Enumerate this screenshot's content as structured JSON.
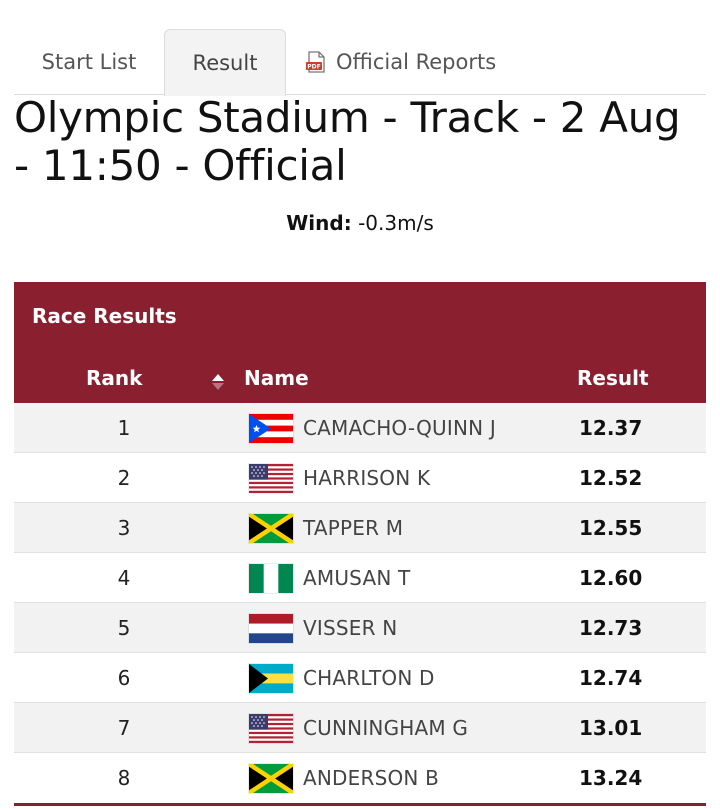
{
  "tabs": [
    {
      "label": "Start List"
    },
    {
      "label": "Result"
    },
    {
      "label": "Official Reports",
      "icon": "pdf-icon"
    }
  ],
  "title": "Olympic Stadium - Track - 2 Aug - 11:50 - Official",
  "wind": {
    "label": "Wind:",
    "value": "-0.3m/s"
  },
  "panel": {
    "title": "Race Results",
    "columns": {
      "rank": "Rank",
      "name": "Name",
      "result": "Result"
    }
  },
  "rows": [
    {
      "rank": "1",
      "flag": "Puerto Rico",
      "name": "CAMACHO-QUINN J",
      "result": "12.37"
    },
    {
      "rank": "2",
      "flag": "United States",
      "name": "HARRISON K",
      "result": "12.52"
    },
    {
      "rank": "3",
      "flag": "Jamaica",
      "name": "TAPPER M",
      "result": "12.55"
    },
    {
      "rank": "4",
      "flag": "Nigeria",
      "name": "AMUSAN T",
      "result": "12.60"
    },
    {
      "rank": "5",
      "flag": "Netherlands",
      "name": "VISSER N",
      "result": "12.73"
    },
    {
      "rank": "6",
      "flag": "Bahamas",
      "name": "CHARLTON D",
      "result": "12.74"
    },
    {
      "rank": "7",
      "flag": "United States",
      "name": "CUNNINGHAM G",
      "result": "13.01"
    },
    {
      "rank": "8",
      "flag": "Jamaica",
      "name": "ANDERSON B",
      "result": "13.24"
    }
  ],
  "colors": {
    "accent": "#8a1f2f",
    "row_alt": "#f2f2f2"
  }
}
